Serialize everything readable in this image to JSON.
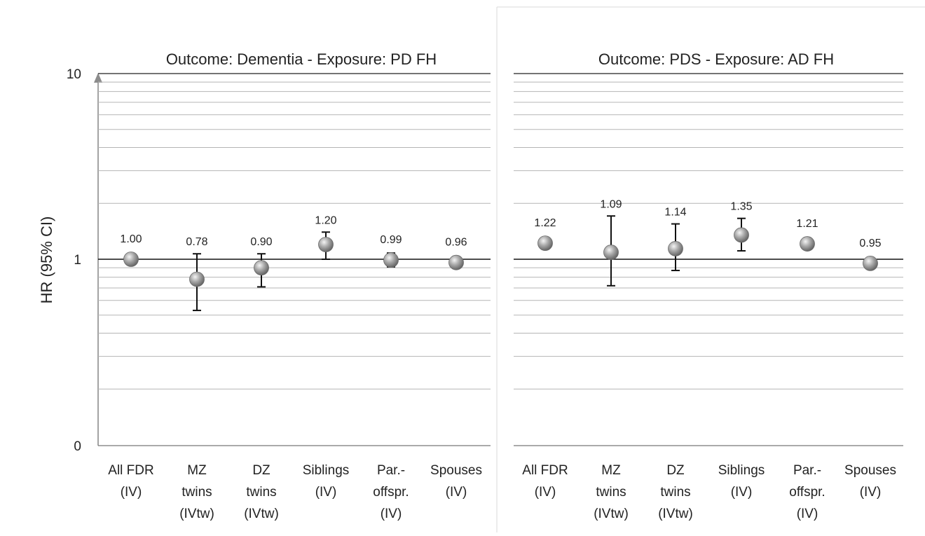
{
  "ylabel": "HR (95% CI)",
  "y_ticks": [
    {
      "label": "10"
    },
    {
      "label": "1"
    },
    {
      "label": "0"
    }
  ],
  "categories": [
    [
      "All FDR",
      "(IV)"
    ],
    [
      "MZ",
      "twins",
      "(IVtw)"
    ],
    [
      "DZ",
      "twins",
      "(IVtw)"
    ],
    [
      "Siblings",
      "(IV)"
    ],
    [
      "Par.-",
      "offspr.",
      "(IV)"
    ],
    [
      "Spouses",
      "(IV)"
    ]
  ],
  "chart_data": [
    {
      "type": "scatter",
      "title": "Outcome: Dementia - Exposure: PD FH",
      "ylabel": "HR (95% CI)",
      "y_scale": "log",
      "ylim": [
        0.1,
        10
      ],
      "grid": true,
      "reference_line": 1,
      "categories": [
        "All FDR (IV)",
        "MZ twins (IVtw)",
        "DZ twins (IVtw)",
        "Siblings (IV)",
        "Par.-offspr. (IV)",
        "Spouses (IV)"
      ],
      "points": [
        {
          "hr": 1.0,
          "label": "1.00",
          "ci": [
            0.94,
            1.06
          ]
        },
        {
          "hr": 0.78,
          "label": "0.78",
          "ci": [
            0.53,
            1.07
          ]
        },
        {
          "hr": 0.9,
          "label": "0.90",
          "ci": [
            0.71,
            1.07
          ]
        },
        {
          "hr": 1.2,
          "label": "1.20",
          "ci": [
            1.0,
            1.4
          ]
        },
        {
          "hr": 0.99,
          "label": "0.99",
          "ci": [
            0.91,
            1.08
          ]
        },
        {
          "hr": 0.96,
          "label": "0.96",
          "ci": null
        }
      ]
    },
    {
      "type": "scatter",
      "title": "Outcome: PDS - Exposure: AD FH",
      "y_scale": "log",
      "ylim": [
        0.1,
        10
      ],
      "grid": true,
      "reference_line": 1,
      "categories": [
        "All FDR (IV)",
        "MZ twins (IVtw)",
        "DZ twins (IVtw)",
        "Siblings (IV)",
        "Par.-offspr. (IV)",
        "Spouses (IV)"
      ],
      "points": [
        {
          "hr": 1.22,
          "label": "1.22",
          "ci": null
        },
        {
          "hr": 1.09,
          "label": "1.09",
          "ci": [
            0.72,
            1.71
          ]
        },
        {
          "hr": 1.14,
          "label": "1.14",
          "ci": [
            0.87,
            1.55
          ]
        },
        {
          "hr": 1.35,
          "label": "1.35",
          "ci": [
            1.11,
            1.66
          ]
        },
        {
          "hr": 1.21,
          "label": "1.21",
          "ci": null
        },
        {
          "hr": 0.95,
          "label": "0.95",
          "ci": null
        }
      ]
    }
  ]
}
